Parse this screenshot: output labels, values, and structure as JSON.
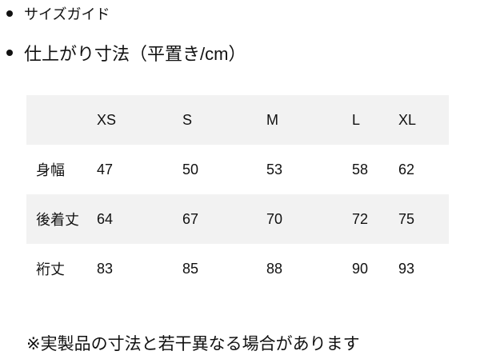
{
  "bullets": [
    "サイズガイド",
    "仕上がり寸法（平置き/cm）"
  ],
  "table": {
    "headers": [
      "",
      "XS",
      "S",
      "M",
      "L",
      "XL"
    ],
    "rows": [
      [
        "身幅",
        "47",
        "50",
        "53",
        "58",
        "62"
      ],
      [
        "後着丈",
        "64",
        "67",
        "70",
        "72",
        "75"
      ],
      [
        "裄丈",
        "83",
        "85",
        "88",
        "90",
        "93"
      ]
    ]
  },
  "note": "※実製品の寸法と若干異なる場合があります"
}
